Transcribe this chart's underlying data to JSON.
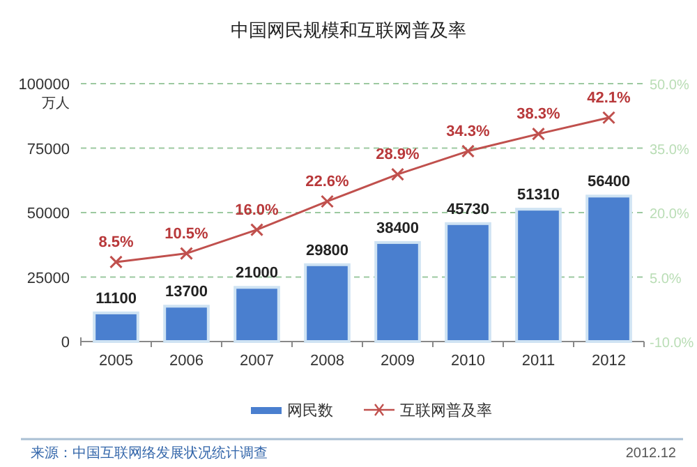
{
  "chart_data": {
    "type": "bar",
    "title": "中国网民规模和互联网普及率",
    "ylabel": "万人",
    "categories": [
      "2005",
      "2006",
      "2007",
      "2008",
      "2009",
      "2010",
      "2011",
      "2012"
    ],
    "series": [
      {
        "name": "网民数",
        "color": "#4a7fcf",
        "values": [
          11100,
          13700,
          21000,
          29800,
          38400,
          45730,
          51310,
          56400
        ],
        "value_labels": [
          "11100",
          "13700",
          "21000",
          "29800",
          "38400",
          "45730",
          "51310",
          "56400"
        ]
      },
      {
        "name": "互联网普及率",
        "type": "line",
        "axis": "y2",
        "color": "#c0504d",
        "marker": "cross",
        "values": [
          8.5,
          10.5,
          16.0,
          22.6,
          28.9,
          34.3,
          38.3,
          42.1
        ],
        "value_labels": [
          "8.5%",
          "10.5%",
          "16.0%",
          "22.6%",
          "28.9%",
          "34.3%",
          "38.3%",
          "42.1%"
        ]
      }
    ],
    "ylim": [
      0,
      100000
    ],
    "yticks": [
      0,
      25000,
      50000,
      75000,
      100000
    ],
    "y2lim": [
      -10,
      50
    ],
    "y2ticks": [
      {
        "value": -10,
        "label": "-10.0%"
      },
      {
        "value": 5,
        "label": "5.0%"
      },
      {
        "value": 20,
        "label": "20.0%"
      },
      {
        "value": 35,
        "label": "35.0%"
      },
      {
        "value": 50,
        "label": "50.0%"
      }
    ],
    "grid": "y",
    "legend": "bottom",
    "annotations": [
      "来源：中国互联网络发展状况统计调查",
      "2012.12"
    ]
  }
}
